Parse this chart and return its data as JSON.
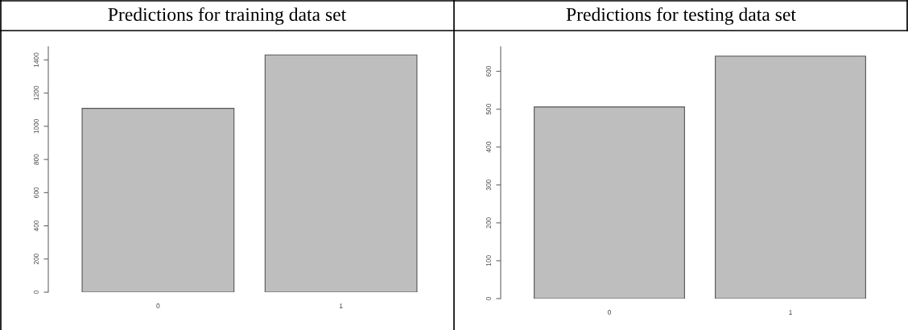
{
  "chart_data": [
    {
      "type": "bar",
      "title": "Predictions for training data set",
      "categories": [
        "0",
        "1"
      ],
      "values": [
        1108,
        1430
      ],
      "color": "#bebebe",
      "ylim": [
        0,
        1480
      ],
      "yticks": [
        0,
        200,
        400,
        600,
        800,
        1000,
        1200,
        1400
      ],
      "grid": false
    },
    {
      "type": "bar",
      "title": "Predictions for testing data set",
      "categories": [
        "0",
        "1"
      ],
      "values": [
        506,
        640
      ],
      "color": "#bebebe",
      "ylim": [
        0,
        665
      ],
      "yticks": [
        0,
        100,
        200,
        300,
        400,
        500,
        600
      ],
      "grid": false
    }
  ]
}
